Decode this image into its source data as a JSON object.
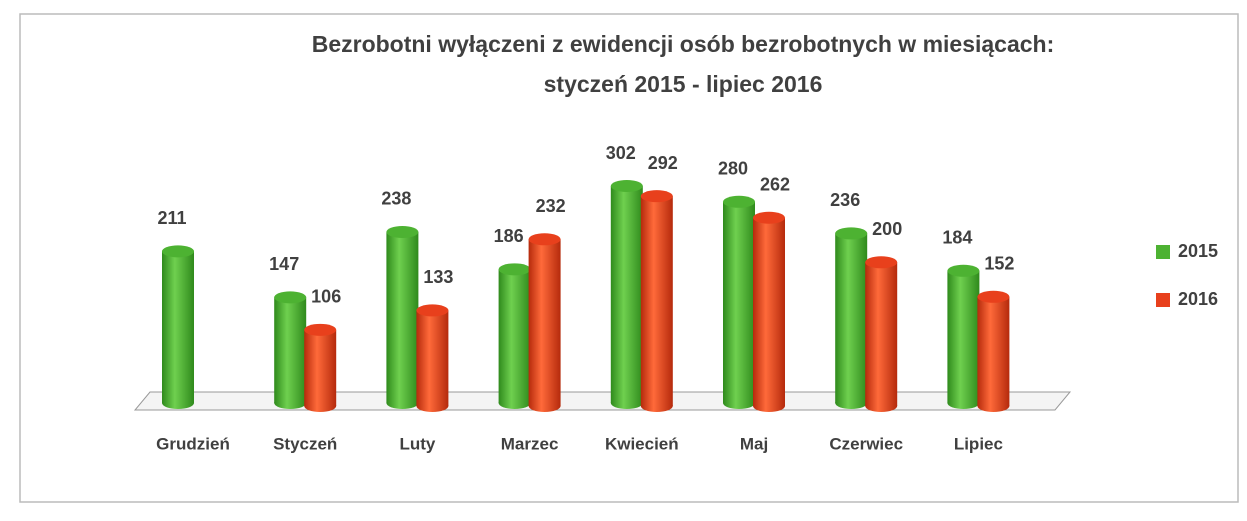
{
  "chart_data": {
    "type": "bar",
    "title": [
      "Bezrobotni wyłączeni z ewidencji osób bezrobotnych w miesiącach:",
      "styczeń  2015 - lipiec 2016"
    ],
    "categories": [
      "Grudzień",
      "Styczeń",
      "Luty",
      "Marzec",
      "Kwiecień",
      "Maj",
      "Czerwiec",
      "Lipiec"
    ],
    "series": [
      {
        "name": "2015",
        "color": "#4db232",
        "values": [
          211,
          147,
          238,
          186,
          302,
          280,
          236,
          184
        ]
      },
      {
        "name": "2016",
        "color": "#e8401c",
        "values": [
          null,
          106,
          133,
          232,
          292,
          262,
          200,
          152
        ]
      }
    ],
    "legend": "right"
  }
}
